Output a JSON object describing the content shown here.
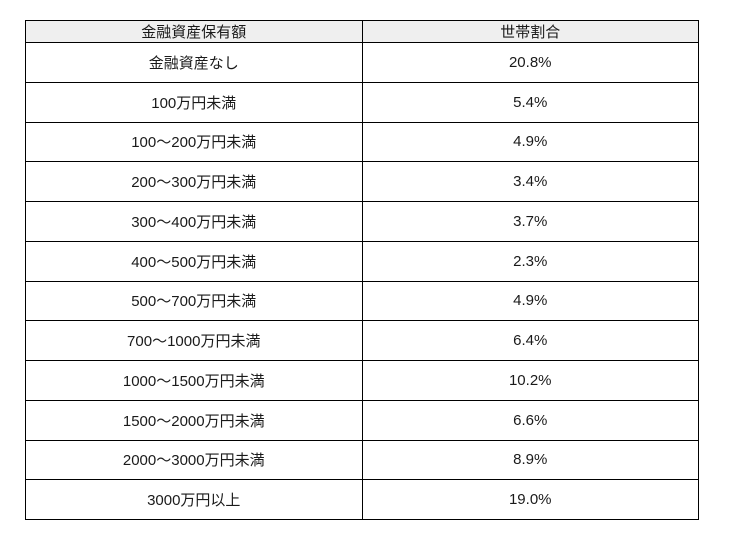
{
  "chart_data": {
    "type": "table",
    "title": "",
    "columns": [
      "金融資産保有額",
      "世帯割合"
    ],
    "categories": [
      "金融資産なし",
      "100万円未満",
      "100〜200万円未満",
      "200〜300万円未満",
      "300〜400万円未満",
      "400〜500万円未満",
      "500〜700万円未満",
      "700〜1000万円未満",
      "1000〜1500万円未満",
      "1500〜2000万円未満",
      "2000〜3000万円未満",
      "3000万円以上"
    ],
    "values_percent": [
      20.8,
      5.4,
      4.9,
      3.4,
      3.7,
      2.3,
      4.9,
      6.4,
      10.2,
      6.6,
      8.9,
      19.0
    ],
    "rows": [
      [
        "金融資産なし",
        "20.8%"
      ],
      [
        "100万円未満",
        "5.4%"
      ],
      [
        "100〜200万円未満",
        "4.9%"
      ],
      [
        "200〜300万円未満",
        "3.4%"
      ],
      [
        "300〜400万円未満",
        "3.7%"
      ],
      [
        "400〜500万円未満",
        "2.3%"
      ],
      [
        "500〜700万円未満",
        "4.9%"
      ],
      [
        "700〜1000万円未満",
        "6.4%"
      ],
      [
        "1000〜1500万円未満",
        "10.2%"
      ],
      [
        "1500〜2000万円未満",
        "6.6%"
      ],
      [
        "2000〜3000万円未満",
        "8.9%"
      ],
      [
        "3000万円以上",
        "19.0%"
      ]
    ],
    "layout": {
      "grid": true,
      "header_row": true,
      "column_alignment": [
        "center",
        "center"
      ]
    }
  },
  "colors": {
    "page_bg": "#ffffff",
    "header_bg": "#efefef",
    "border": "#000000",
    "text": "#1a1a1a"
  }
}
